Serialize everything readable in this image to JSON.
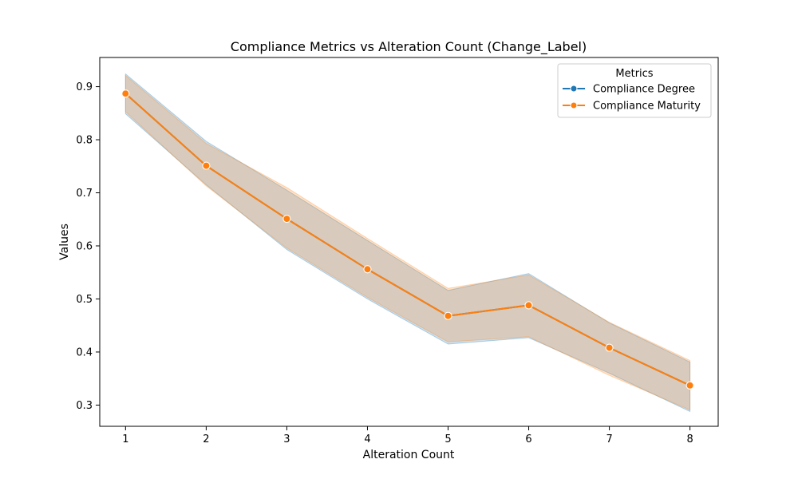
{
  "chart_data": {
    "type": "line",
    "title": "Compliance Metrics vs Alteration Count (Change_Label)",
    "xlabel": "Alteration Count",
    "ylabel": "Values",
    "x": [
      1,
      2,
      3,
      4,
      5,
      6,
      7,
      8
    ],
    "xticks": [
      "1",
      "2",
      "3",
      "4",
      "5",
      "6",
      "7",
      "8"
    ],
    "yticks": [
      "0.3",
      "0.4",
      "0.5",
      "0.6",
      "0.7",
      "0.8",
      "0.9"
    ],
    "xlim": [
      0.68,
      8.35
    ],
    "ylim": [
      0.26,
      0.955
    ],
    "grid": false,
    "legend": {
      "title": "Metrics",
      "placement": "top-right"
    },
    "series": [
      {
        "name": "Compliance Degree",
        "color": "#1f77b4",
        "values": [
          0.887,
          0.751,
          0.651,
          0.556,
          0.468,
          0.488,
          0.408,
          0.337
        ],
        "ci_lower": [
          0.849,
          0.715,
          0.593,
          0.5,
          0.415,
          0.427,
          0.36,
          0.288
        ],
        "ci_upper": [
          0.924,
          0.797,
          0.705,
          0.61,
          0.516,
          0.548,
          0.455,
          0.381
        ]
      },
      {
        "name": "Compliance Maturity",
        "color": "#ff7f0e",
        "values": [
          0.887,
          0.751,
          0.651,
          0.556,
          0.468,
          0.488,
          0.408,
          0.337
        ],
        "ci_lower": [
          0.853,
          0.713,
          0.596,
          0.503,
          0.419,
          0.429,
          0.356,
          0.291
        ],
        "ci_upper": [
          0.921,
          0.793,
          0.71,
          0.614,
          0.52,
          0.545,
          0.456,
          0.384
        ]
      }
    ]
  }
}
